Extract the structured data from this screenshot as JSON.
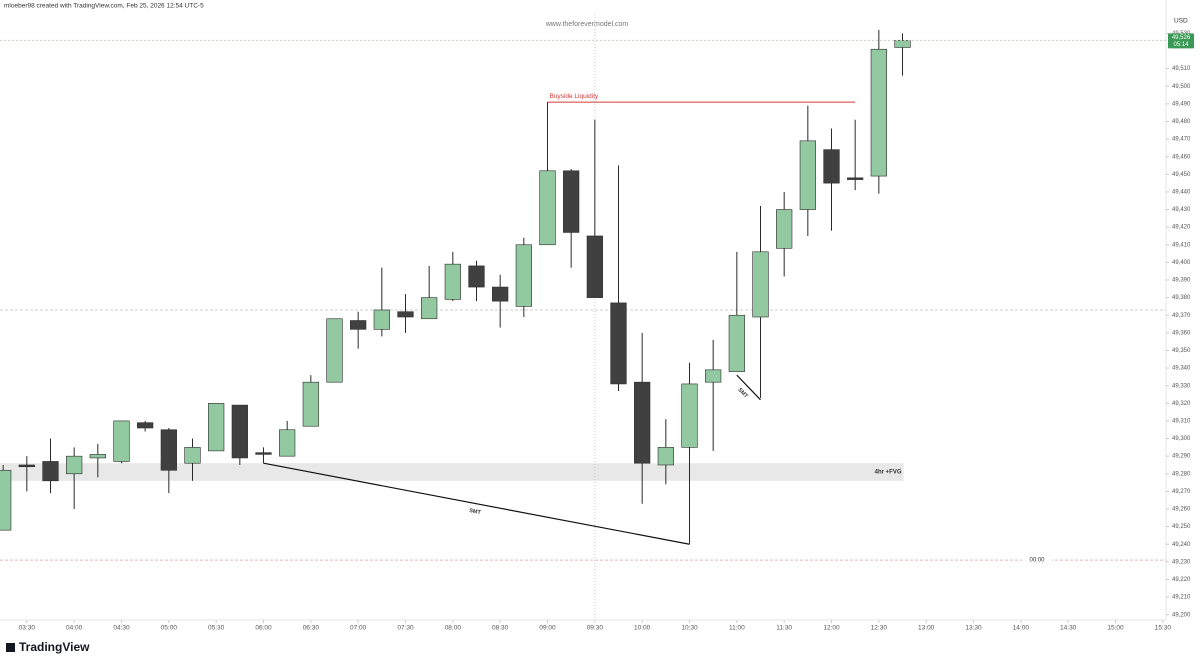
{
  "chart_data": {
    "type": "candlestick",
    "caption": "mloeber98 created with TradingView.com, Feb 25, 2026 12:54 UTC-5",
    "watermark": "www.theforevermodel.com",
    "currency": "USD",
    "brand": "TradingView",
    "up_color": "#93c9a0",
    "down_color": "#404040",
    "x": [
      "03:15",
      "03:30",
      "03:45",
      "04:00",
      "04:15",
      "04:30",
      "04:45",
      "05:00",
      "05:15",
      "05:30",
      "05:45",
      "06:00",
      "06:15",
      "06:30",
      "06:45",
      "07:00",
      "07:15",
      "07:30",
      "07:45",
      "08:00",
      "08:15",
      "08:30",
      "08:45",
      "09:00",
      "09:15",
      "09:30",
      "09:45",
      "10:00",
      "10:15",
      "10:30",
      "10:45",
      "11:00",
      "11:15",
      "11:30",
      "11:45",
      "12:00",
      "12:15",
      "12:30",
      "12:45"
    ],
    "open": [
      49248,
      49285,
      49287,
      49280,
      49289,
      49287,
      49309,
      49305,
      49286,
      49293,
      49319,
      49292,
      49290,
      49307,
      49332,
      49367,
      49362,
      49372,
      49368,
      49379,
      49398,
      49386,
      49375,
      49410,
      49452,
      49415,
      49377,
      49332,
      49285,
      49295,
      49332,
      49338,
      49369,
      49408,
      49430,
      49464,
      49448,
      49449,
      49522
    ],
    "high": [
      49285,
      49290,
      49300,
      49295,
      49297,
      49310,
      49310,
      49306,
      49300,
      49320,
      49319,
      49295,
      49310,
      49336,
      49368,
      49372,
      49397,
      49382,
      49398,
      49406,
      49401,
      49393,
      49414,
      49491,
      49453,
      49481,
      49455,
      49360,
      49311,
      49343,
      49356,
      49406,
      49432,
      49440,
      49489,
      49476,
      49481,
      49532,
      49530
    ],
    "low": [
      49248,
      49270,
      49269,
      49260,
      49278,
      49286,
      49304,
      49269,
      49276,
      49293,
      49285,
      49286,
      49290,
      49307,
      49332,
      49351,
      49358,
      49360,
      49368,
      49378,
      49378,
      49363,
      49369,
      49410,
      49397,
      49380,
      49327,
      49263,
      49274,
      49240,
      49293,
      49338,
      49323,
      49392,
      49415,
      49418,
      49441,
      49439,
      49506
    ],
    "close": [
      49282,
      49284,
      49276,
      49290,
      49291,
      49310,
      49306,
      49282,
      49295,
      49320,
      49289,
      49291,
      49305,
      49332,
      49368,
      49362,
      49373,
      49369,
      49380,
      49399,
      49386,
      49378,
      49410,
      49452,
      49417,
      49380,
      49331,
      49286,
      49295,
      49331,
      49339,
      49370,
      49406,
      49430,
      49469,
      49445,
      49447,
      49521,
      49526
    ],
    "xlim": [
      "03:13",
      "15:32"
    ],
    "xticks": [
      "03:30",
      "04:00",
      "04:30",
      "05:00",
      "05:30",
      "06:00",
      "06:30",
      "07:00",
      "07:30",
      "08:00",
      "08:30",
      "09:00",
      "09:30",
      "10:00",
      "10:30",
      "11:00",
      "11:30",
      "12:00",
      "12:30",
      "13:00",
      "13:30",
      "14:00",
      "14:30",
      "15:00",
      "15:30"
    ],
    "ylim": [
      49197,
      49541
    ],
    "yticks": [
      {
        "value": 49200,
        "label": "49,200"
      },
      {
        "value": 49210,
        "label": "49,210"
      },
      {
        "value": 49220,
        "label": "49,220"
      },
      {
        "value": 49230,
        "label": "49,230"
      },
      {
        "value": 49240,
        "label": "49,240"
      },
      {
        "value": 49250,
        "label": "49,250"
      },
      {
        "value": 49260,
        "label": "49,260"
      },
      {
        "value": 49270,
        "label": "49,270"
      },
      {
        "value": 49280,
        "label": "49,280"
      },
      {
        "value": 49290,
        "label": "49,290"
      },
      {
        "value": 49300,
        "label": "49,300"
      },
      {
        "value": 49310,
        "label": "49,310"
      },
      {
        "value": 49320,
        "label": "49,320"
      },
      {
        "value": 49330,
        "label": "49,330"
      },
      {
        "value": 49340,
        "label": "49,340"
      },
      {
        "value": 49350,
        "label": "49,350"
      },
      {
        "value": 49360,
        "label": "49,360"
      },
      {
        "value": 49370,
        "label": "49,370"
      },
      {
        "value": 49380,
        "label": "49,380"
      },
      {
        "value": 49390,
        "label": "49,390"
      },
      {
        "value": 49400,
        "label": "49,400"
      },
      {
        "value": 49410,
        "label": "49,410"
      },
      {
        "value": 49420,
        "label": "49,420"
      },
      {
        "value": 49430,
        "label": "49,430"
      },
      {
        "value": 49440,
        "label": "49,440"
      },
      {
        "value": 49450,
        "label": "49,450"
      },
      {
        "value": 49460,
        "label": "49,460"
      },
      {
        "value": 49470,
        "label": "49,470"
      },
      {
        "value": 49480,
        "label": "49,480"
      },
      {
        "value": 49490,
        "label": "49,490"
      },
      {
        "value": 49500,
        "label": "49,500"
      },
      {
        "value": 49510,
        "label": "49,510"
      },
      {
        "value": 49530,
        "label": "49,530"
      }
    ],
    "last_price": {
      "value": 49526,
      "label": "49,526"
    },
    "countdown": "05:14",
    "levels": [
      {
        "label": "Buyside Liquidity",
        "value": 49491,
        "from": "09:00",
        "to": "12:15",
        "color": "#d03a3a"
      }
    ],
    "zones": [
      {
        "label": "4hr +FVG",
        "from": 49276,
        "to": 49286,
        "end": "12:45"
      }
    ],
    "smt": [
      {
        "label": "SMT",
        "x1": "06:00",
        "y1": 49286,
        "x2": "10:30",
        "y2": 49240
      },
      {
        "label": "SMT",
        "x1": "11:00",
        "y1": 49336,
        "x2": "11:15",
        "y2": 49322
      }
    ],
    "hlines": [
      {
        "value": 49373
      },
      {
        "value": 49231,
        "label": "00:00"
      }
    ],
    "vlines": [
      "09:30"
    ]
  }
}
